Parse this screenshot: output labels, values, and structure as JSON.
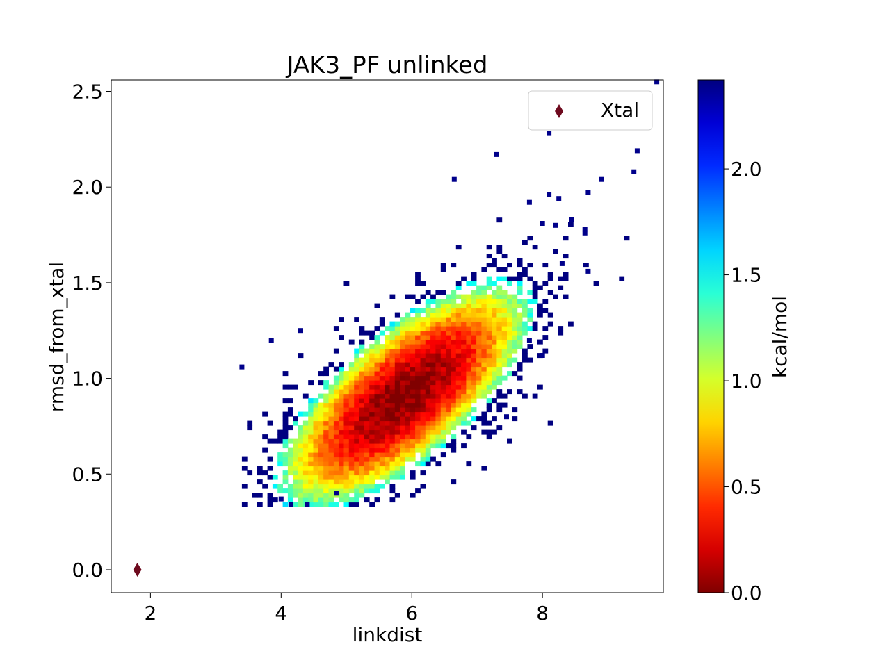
{
  "chart_data": {
    "type": "heatmap",
    "title": "JAK3_PF unlinked",
    "xlabel": "linkdist",
    "ylabel": "rmsd_from_xtal",
    "xlim": [
      1.4,
      9.85
    ],
    "ylim": [
      -0.12,
      2.56
    ],
    "x_ticks": [
      2,
      4,
      6,
      8
    ],
    "x_tick_labels": [
      "2",
      "4",
      "6",
      "8"
    ],
    "y_ticks": [
      0.0,
      0.5,
      1.0,
      1.5,
      2.0,
      2.5
    ],
    "y_tick_labels": [
      "0.0",
      "0.5",
      "1.0",
      "1.5",
      "2.0",
      "2.5"
    ],
    "grid": false,
    "colorbar": {
      "label": "kcal/mol",
      "colormap": "jet (reversed: dark red = 0, dark blue = max)",
      "range": [
        0.0,
        2.42
      ],
      "ticks": [
        0.0,
        0.5,
        1.0,
        1.5,
        2.0
      ],
      "tick_labels": [
        "0.0",
        "0.5",
        "1.0",
        "1.5",
        "2.0"
      ]
    },
    "density": {
      "description": "2D free-energy histogram of linkdist vs rmsd_from_xtal",
      "center": [
        5.85,
        0.9
      ],
      "correlation_slope_rmsd_per_linkdist": 0.22,
      "min_energy_kcal_mol": 0.0,
      "max_energy_kcal_mol": 2.42,
      "core_x_range": [
        4.6,
        7.2
      ],
      "core_y_range": [
        0.6,
        1.2
      ],
      "outer_x_range": [
        3.4,
        9.8
      ],
      "outer_y_range": [
        0.33,
        2.55
      ]
    },
    "sparse_points": [
      {
        "x": 9.75,
        "y": 2.55
      },
      {
        "x": 8.1,
        "y": 2.28
      },
      {
        "x": 7.3,
        "y": 2.17
      },
      {
        "x": 9.45,
        "y": 2.19
      },
      {
        "x": 9.4,
        "y": 2.08
      },
      {
        "x": 8.9,
        "y": 2.04
      },
      {
        "x": 6.65,
        "y": 2.04
      },
      {
        "x": 8.1,
        "y": 1.96
      },
      {
        "x": 8.25,
        "y": 1.94
      },
      {
        "x": 8.7,
        "y": 1.97
      },
      {
        "x": 7.8,
        "y": 1.92
      },
      {
        "x": 8.0,
        "y": 1.81
      },
      {
        "x": 8.2,
        "y": 1.8
      },
      {
        "x": 8.45,
        "y": 1.83
      },
      {
        "x": 8.65,
        "y": 1.78
      },
      {
        "x": 8.65,
        "y": 1.76
      },
      {
        "x": 8.7,
        "y": 1.56
      },
      {
        "x": 8.3,
        "y": 1.6
      },
      {
        "x": 3.85,
        "y": 1.2
      },
      {
        "x": 4.3,
        "y": 1.25
      },
      {
        "x": 3.4,
        "y": 1.06
      },
      {
        "x": 4.0,
        "y": 0.37
      },
      {
        "x": 4.15,
        "y": 0.34
      },
      {
        "x": 4.4,
        "y": 0.34
      },
      {
        "x": 4.85,
        "y": 0.4
      },
      {
        "x": 7.45,
        "y": 0.8
      },
      {
        "x": 8.0,
        "y": 1.12
      },
      {
        "x": 7.8,
        "y": 1.2
      }
    ],
    "legend": {
      "position": "top-right",
      "entries": [
        {
          "label": "Xtal",
          "marker": "diamond",
          "color": "#6e0a1e"
        }
      ]
    },
    "reference_point": {
      "name": "Xtal",
      "x": 1.8,
      "y": 0.0,
      "marker": "diamond",
      "color": "#6e0a1e"
    }
  }
}
